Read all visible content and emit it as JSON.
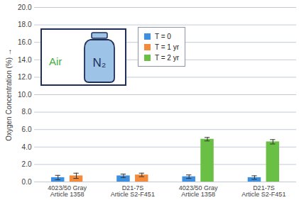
{
  "chart_data": {
    "type": "bar",
    "categories": [
      "4023/50 Gray\nArticle 1358",
      "D21-7S\nArticle S2-F451",
      "4023/50 Gray\nArticle 1358",
      "D21-7S\nArticle S2-F451"
    ],
    "series": [
      {
        "name": "T = 0",
        "color": "#3d8fe0",
        "values": [
          0.5,
          0.7,
          0.6,
          0.5
        ],
        "errors": [
          0.25,
          0.2,
          0.2,
          0.2
        ]
      },
      {
        "name": "T = 1 yr",
        "color": "#f28c3c",
        "values": [
          0.7,
          0.8,
          null,
          null
        ],
        "errors": [
          0.3,
          0.2,
          null,
          null
        ]
      },
      {
        "name": "T = 2 yr",
        "color": "#6abf45",
        "values": [
          null,
          null,
          4.9,
          4.6
        ],
        "errors": [
          null,
          null,
          0.2,
          0.25
        ]
      }
    ],
    "y_label": "Oxygen Concentration (%)",
    "ylim": [
      0,
      20
    ],
    "yticks": [
      {
        "value": 0,
        "label": "0.0"
      },
      {
        "value": 2,
        "label": "2.0"
      },
      {
        "value": 4,
        "label": "4.0"
      },
      {
        "value": 6,
        "label": "6.0"
      },
      {
        "value": 8,
        "label": "8.0"
      },
      {
        "value": 10,
        "label": "10.0"
      },
      {
        "value": 12,
        "label": "12.0"
      },
      {
        "value": 14,
        "label": "14.0"
      },
      {
        "value": 16,
        "label": "16.0"
      },
      {
        "value": 18,
        "label": "18.0"
      },
      {
        "value": 20,
        "label": "20.0"
      }
    ],
    "grid": true,
    "legend": "top",
    "annotations": [
      "Air",
      "N₂"
    ]
  }
}
